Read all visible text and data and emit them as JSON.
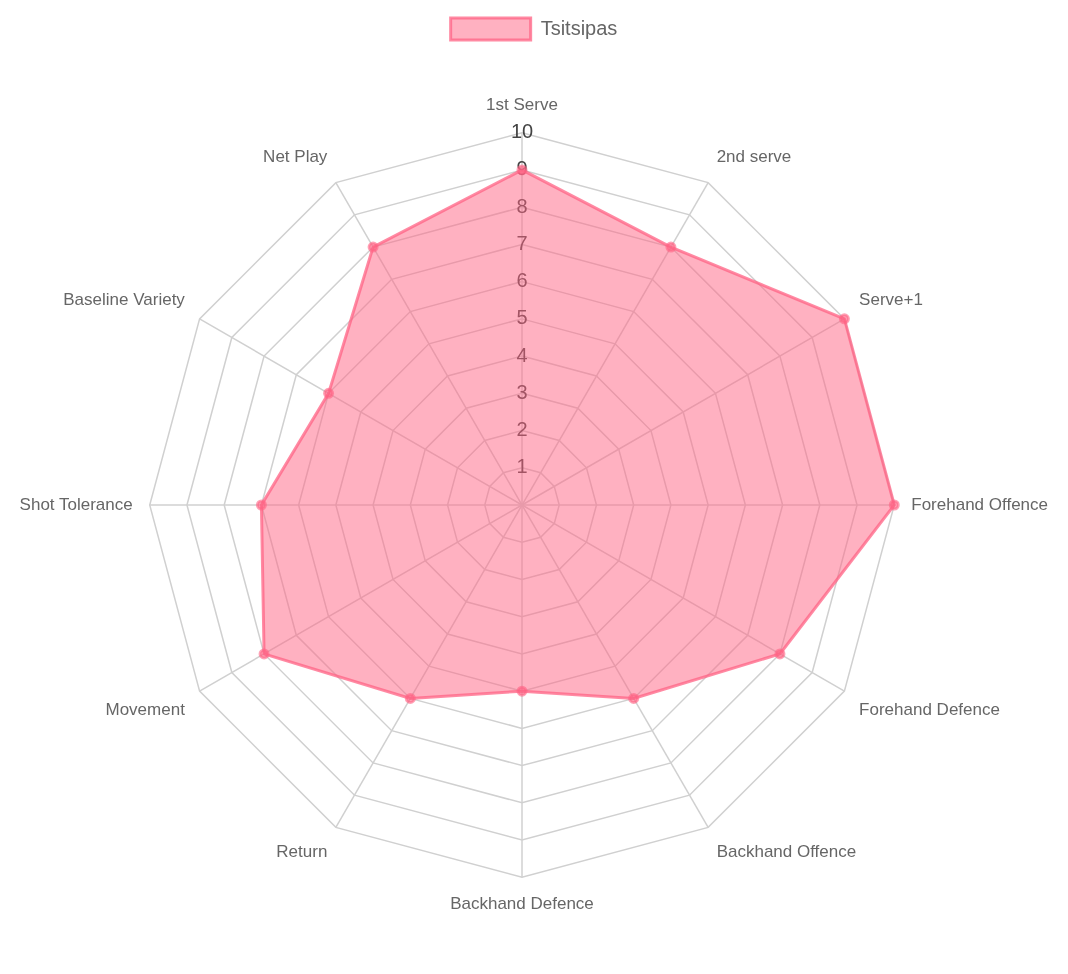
{
  "chart_data": {
    "type": "radar",
    "categories": [
      "1st Serve",
      "2nd serve",
      "Serve+1",
      "Forehand Offence",
      "Forehand Defence",
      "Backhand Offence",
      "Backhand Defence",
      "Return",
      "Movement",
      "Shot Tolerance",
      "Baseline Variety",
      "Net Play"
    ],
    "series": [
      {
        "name": "Tsitsipas",
        "color": "#ff6384",
        "values": [
          9,
          8,
          10,
          10,
          8,
          6,
          5,
          6,
          8,
          7,
          6,
          8
        ]
      }
    ],
    "ylim": [
      0,
      10
    ],
    "yticks": [
      1,
      2,
      3,
      4,
      5,
      6,
      7,
      8,
      9,
      10
    ],
    "legend": "top",
    "grid": true,
    "marker": "circle"
  }
}
